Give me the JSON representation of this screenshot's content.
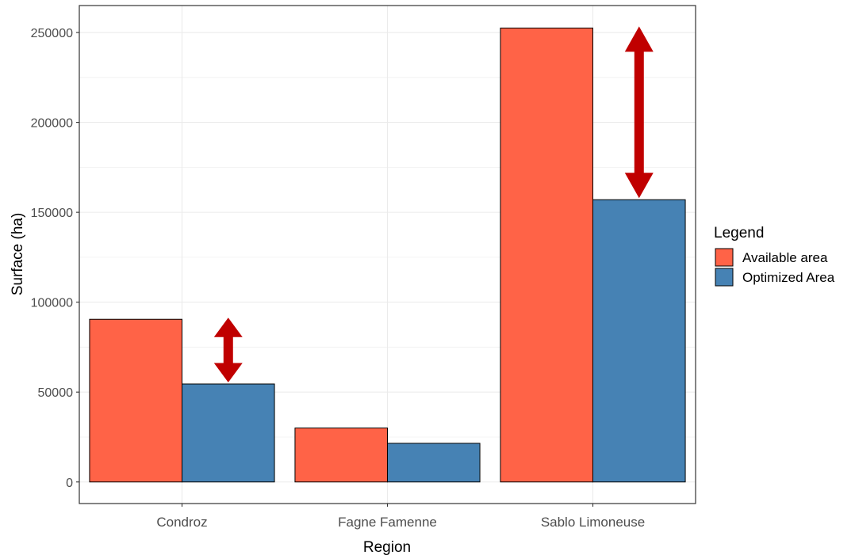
{
  "chart_data": {
    "type": "bar",
    "xlabel": "Region",
    "ylabel": "Surface (ha)",
    "categories": [
      "Condroz",
      "Fagne Famenne",
      "Sablo Limoneuse"
    ],
    "series": [
      {
        "name": "Available area",
        "values": [
          90500,
          30000,
          252500
        ],
        "color": "#ff6347"
      },
      {
        "name": "Optimized Area",
        "values": [
          54500,
          21500,
          157000
        ],
        "color": "#4682b4"
      }
    ],
    "ylim": [
      -12000,
      265000
    ],
    "yticks": [
      0,
      50000,
      100000,
      150000,
      200000,
      250000
    ],
    "ytick_labels": [
      "0",
      "50000",
      "100000",
      "150000",
      "200000",
      "250000"
    ],
    "grid": true,
    "legend": {
      "title": "Legend",
      "placement": "right"
    },
    "annotations": [
      {
        "type": "double-arrow",
        "category": "Condroz",
        "from": 54500,
        "to": 90500,
        "color": "#c00000"
      },
      {
        "type": "double-arrow",
        "category": "Sablo Limoneuse",
        "from": 157000,
        "to": 252500,
        "color": "#c00000"
      }
    ]
  }
}
